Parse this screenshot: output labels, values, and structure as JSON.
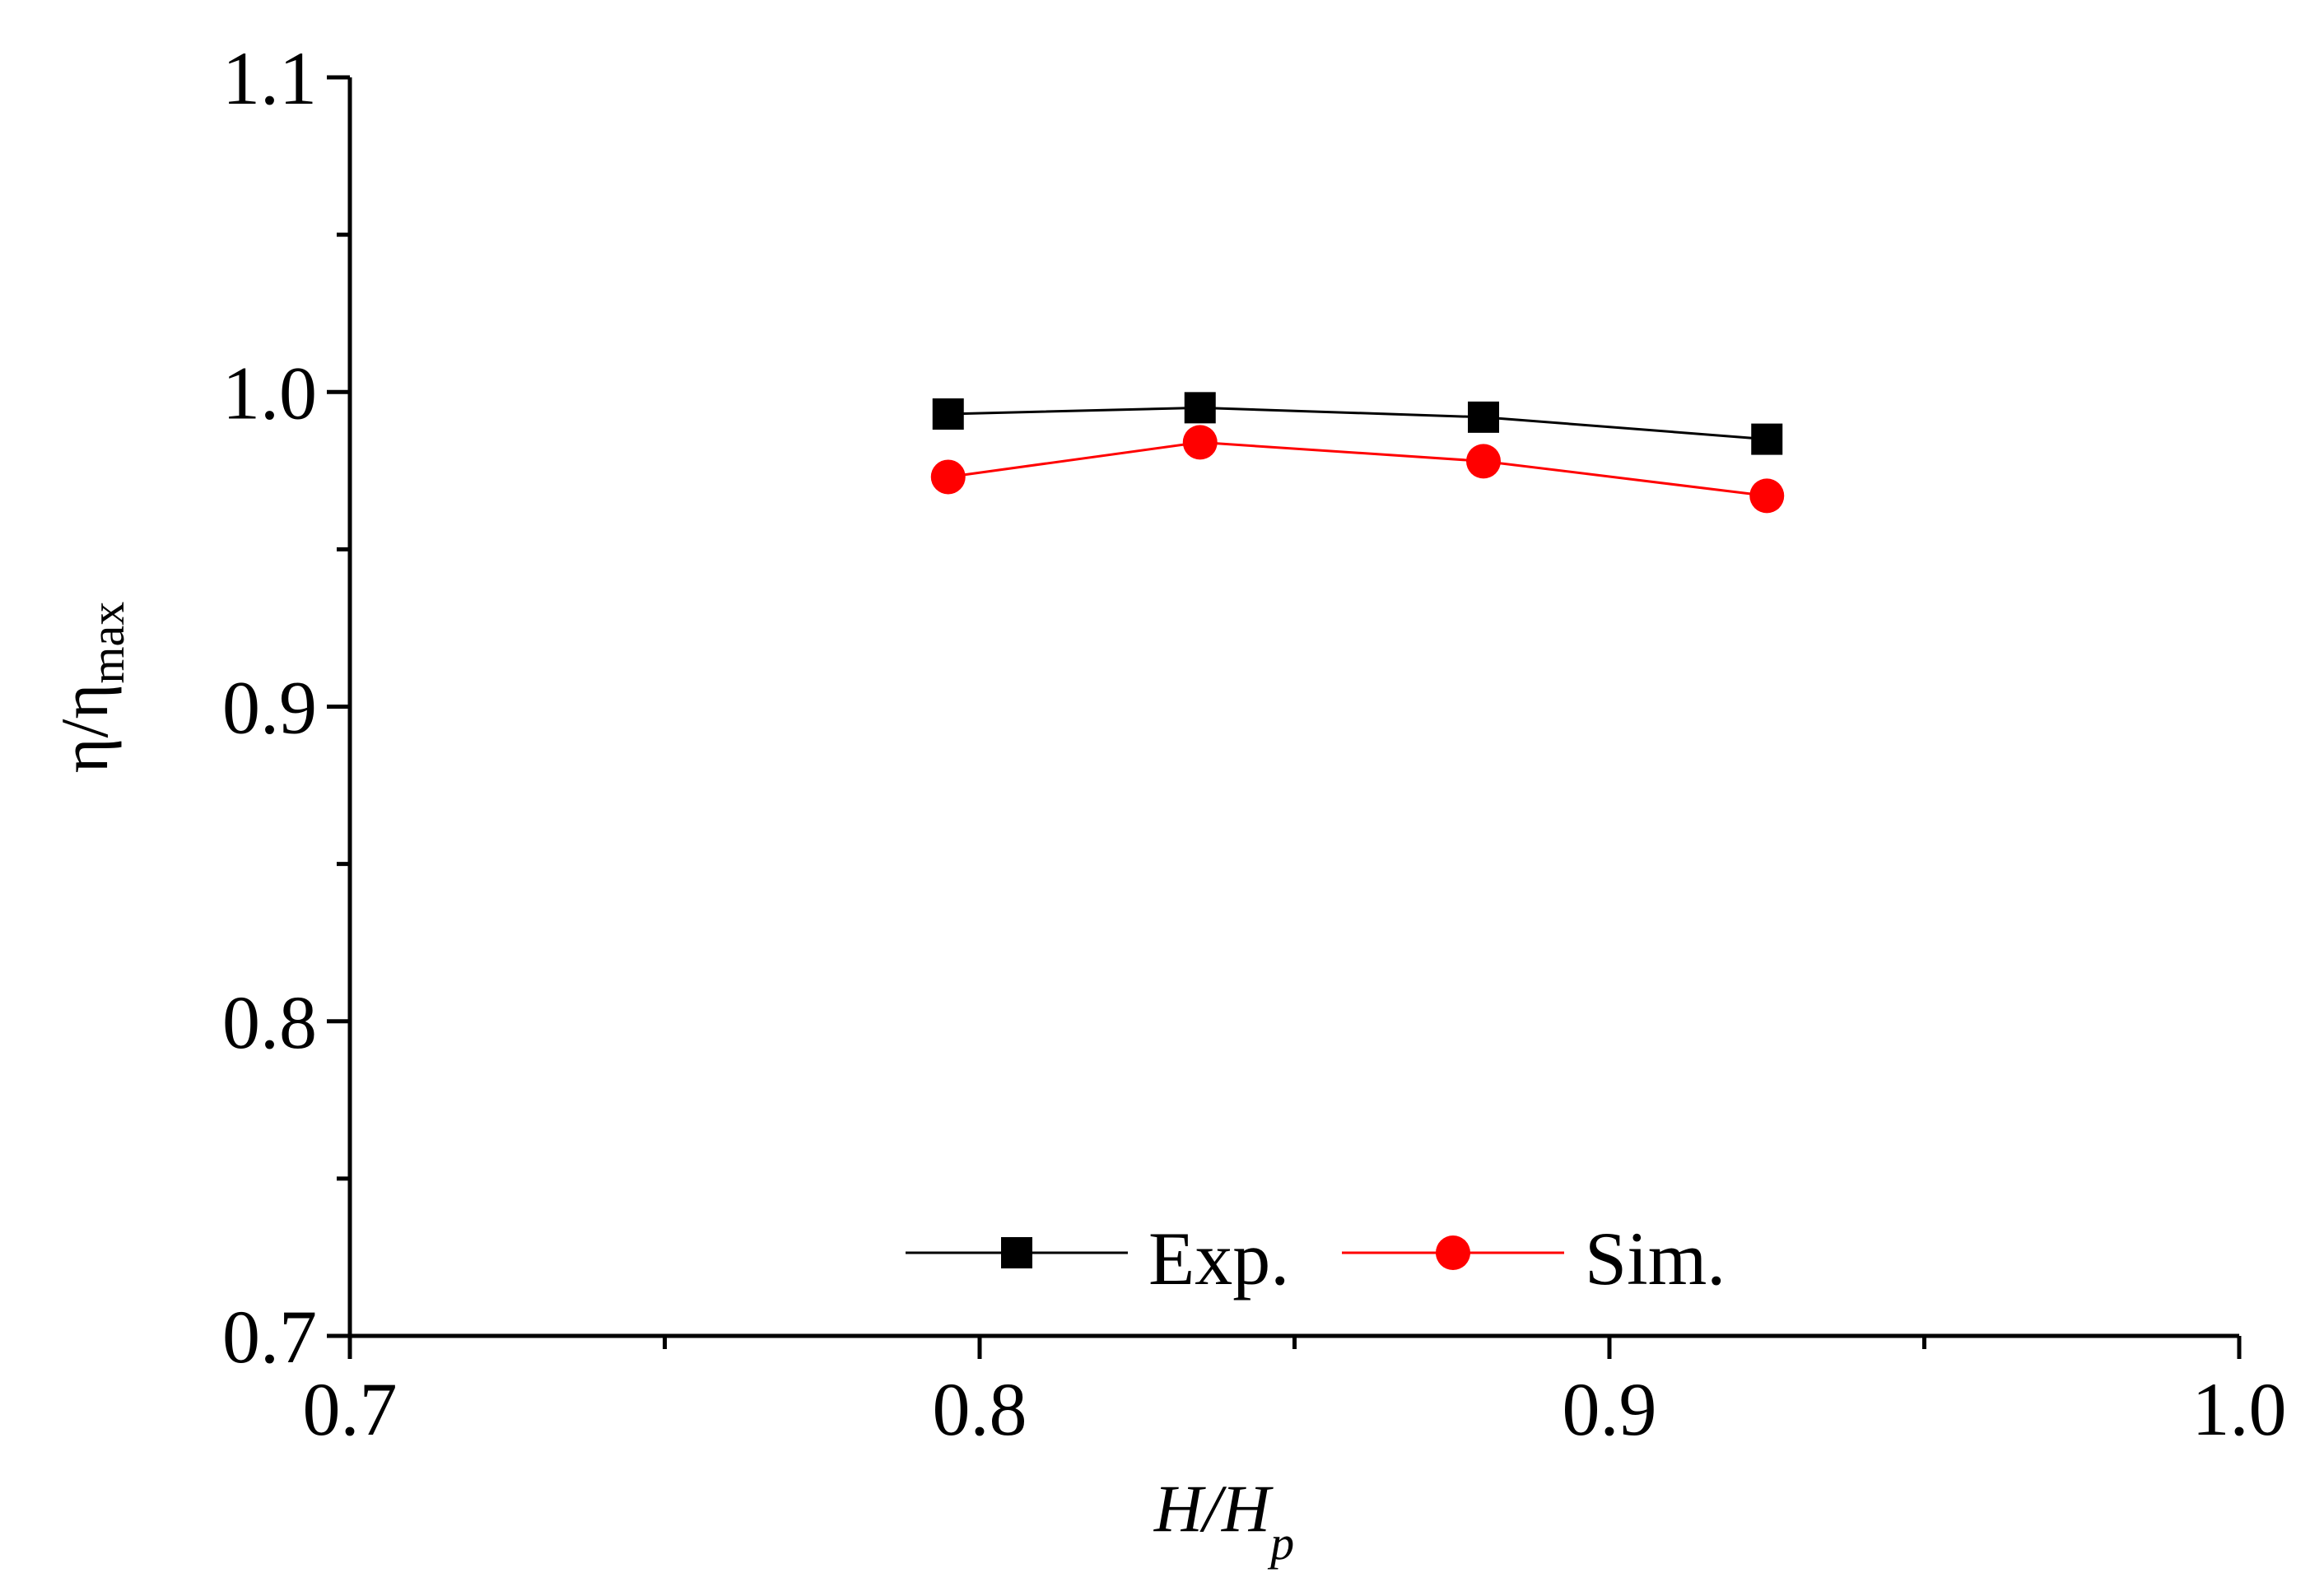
{
  "chart_data": {
    "type": "line",
    "title": "",
    "xlabel": {
      "main": "H/H",
      "sub": "p"
    },
    "ylabel": {
      "main": "η/η",
      "sub": "max"
    },
    "xlim": [
      0.7,
      1.0
    ],
    "ylim": [
      0.7,
      1.1
    ],
    "x_ticks": [
      {
        "value": 0.7,
        "label": "0.7"
      },
      {
        "value": 0.8,
        "label": "0.8"
      },
      {
        "value": 0.9,
        "label": "0.9"
      },
      {
        "value": 1.0,
        "label": "1.0"
      }
    ],
    "x_minor_ticks": [
      0.75,
      0.85,
      0.95
    ],
    "y_ticks": [
      {
        "value": 0.7,
        "label": "0.7"
      },
      {
        "value": 0.8,
        "label": "0.8"
      },
      {
        "value": 0.9,
        "label": "0.9"
      },
      {
        "value": 1.0,
        "label": "1.0"
      },
      {
        "value": 1.1,
        "label": "1.1"
      }
    ],
    "y_minor_ticks": [
      0.75,
      0.85,
      0.95,
      1.05
    ],
    "grid": false,
    "legend_position": "bottom-center",
    "series": [
      {
        "name": "Exp.",
        "marker": "square",
        "color": "#000000",
        "x": [
          0.795,
          0.835,
          0.88,
          0.925
        ],
        "y": [
          0.993,
          0.995,
          0.992,
          0.985
        ]
      },
      {
        "name": "Sim.",
        "marker": "circle",
        "color": "#ff0000",
        "x": [
          0.795,
          0.835,
          0.88,
          0.925
        ],
        "y": [
          0.973,
          0.984,
          0.978,
          0.967
        ]
      }
    ]
  }
}
